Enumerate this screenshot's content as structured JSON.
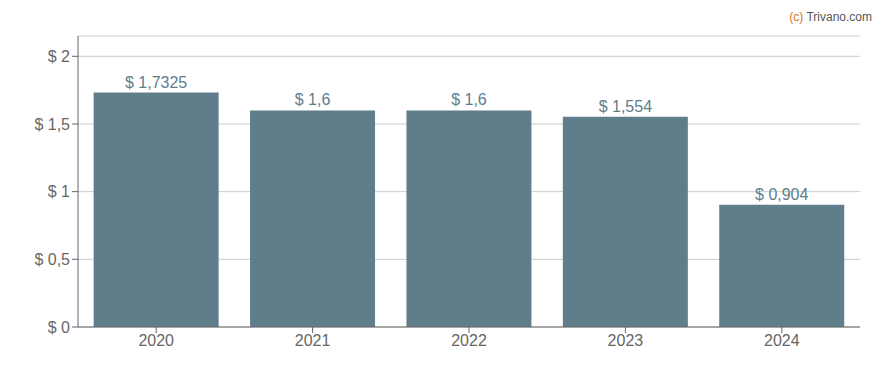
{
  "chart_data": {
    "type": "bar",
    "categories": [
      "2020",
      "2021",
      "2022",
      "2023",
      "2024"
    ],
    "values": [
      1.7325,
      1.6,
      1.6,
      1.554,
      0.904
    ],
    "value_labels": [
      "$ 1,7325",
      "$ 1,6",
      "$ 1,6",
      "$ 1,554",
      "$ 0,904"
    ],
    "color": "#607d8b",
    "ylim": [
      0,
      2.15
    ],
    "yticks": [
      {
        "value": 0,
        "label": "$ 0"
      },
      {
        "value": 0.5,
        "label": "$ 0,5"
      },
      {
        "value": 1.0,
        "label": "$ 1"
      },
      {
        "value": 1.5,
        "label": "$ 1,5"
      },
      {
        "value": 2.0,
        "label": "$ 2"
      }
    ],
    "grid": true,
    "data_labels": true,
    "annotations": [
      {
        "text": "(c)",
        "color": "#c8781e"
      },
      {
        "text": "Trivano.com",
        "color": "#555555"
      }
    ]
  }
}
